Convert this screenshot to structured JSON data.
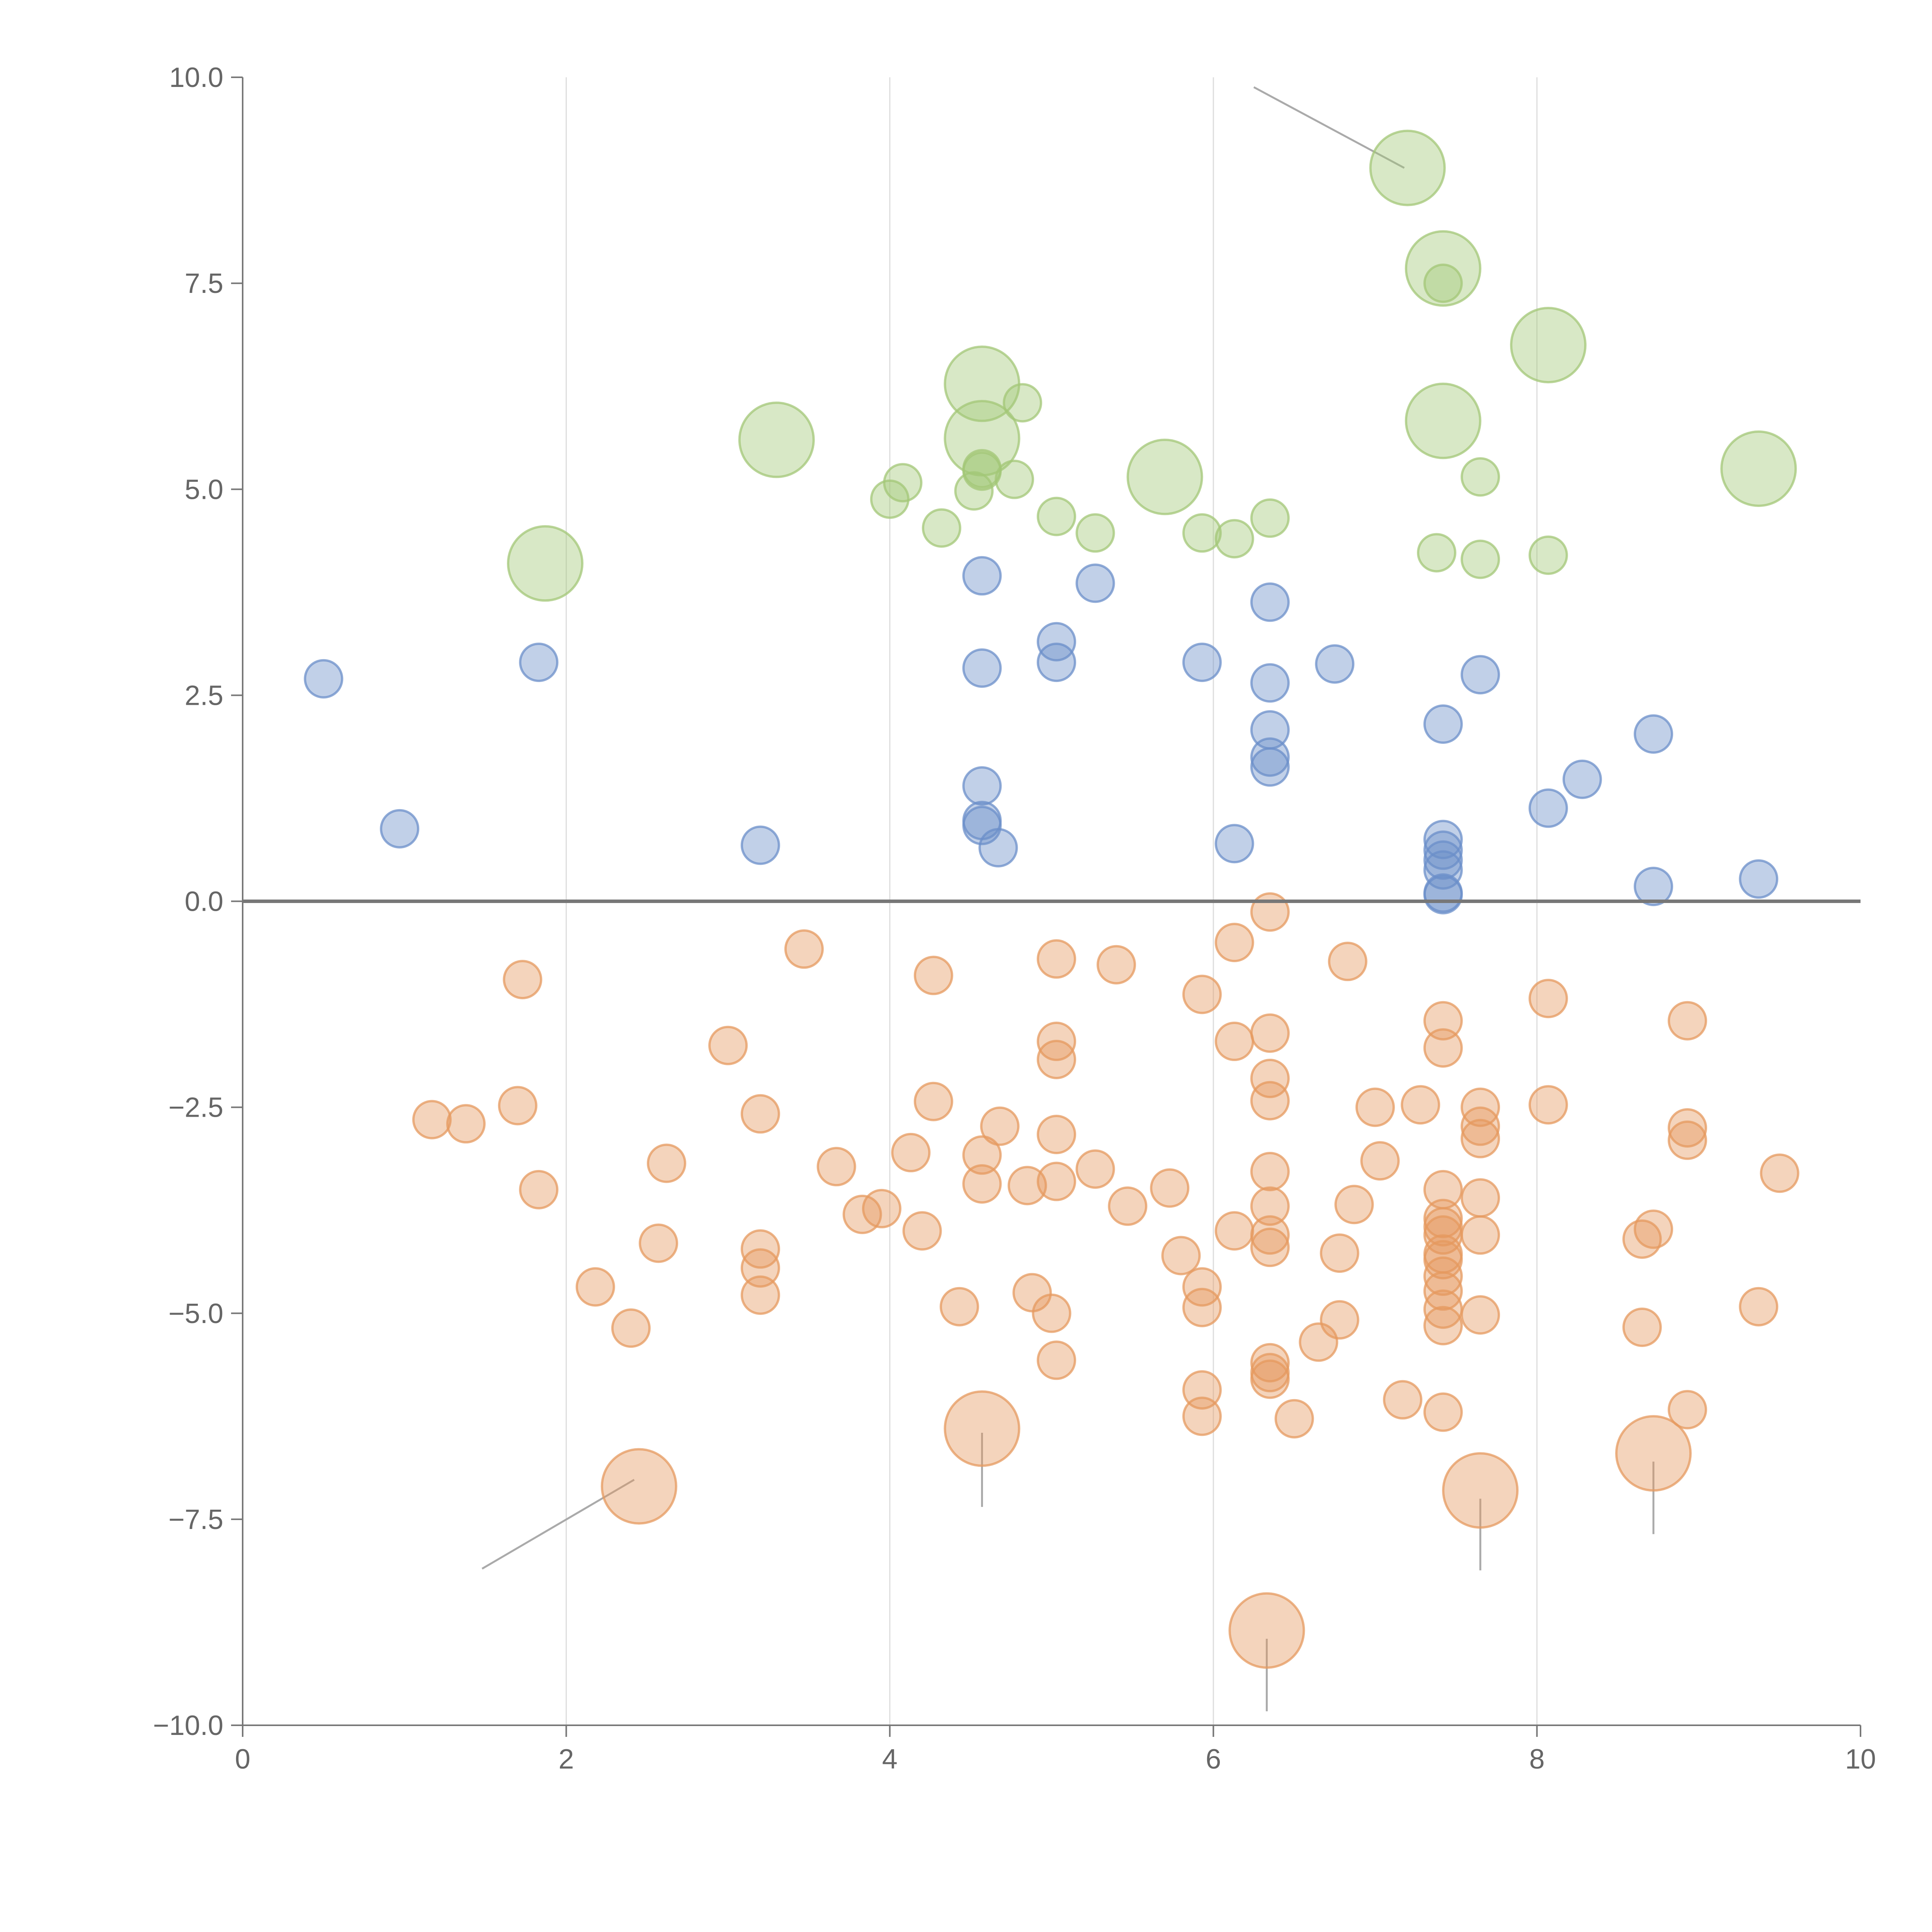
{
  "chart_data": {
    "type": "scatter",
    "title": "",
    "xlabel": "",
    "ylabel": "",
    "xlim": [
      0,
      10
    ],
    "ylim": [
      -10,
      10
    ],
    "x_ticks": [
      0,
      2,
      4,
      6,
      8,
      10
    ],
    "x_tick_labels": [
      "0",
      "2",
      "4",
      "6",
      "8",
      "10"
    ],
    "y_ticks": [
      -10,
      -7.5,
      -5,
      -2.5,
      0,
      2.5,
      5,
      7.5,
      10
    ],
    "y_tick_labels": [
      "−10.0",
      "−7.5",
      "−5.0",
      "−2.5",
      "0.0",
      "2.5",
      "5.0",
      "7.5",
      "10.0"
    ],
    "grid": "vertical lines only",
    "reference_line_y": 0,
    "size_scale": {
      "small": 1,
      "large": 2
    },
    "colors": {
      "blue": "#6b8fc9",
      "green": "#a3c777",
      "orange": "#e5995f"
    },
    "series": [
      {
        "name": "blue",
        "color": "#6b8fc9",
        "points": [
          {
            "x": 0.5,
            "y": 2.7,
            "size": 1
          },
          {
            "x": 0.97,
            "y": 0.88,
            "size": 1
          },
          {
            "x": 1.83,
            "y": 2.9,
            "size": 1
          },
          {
            "x": 3.2,
            "y": 0.68,
            "size": 1
          },
          {
            "x": 4.57,
            "y": 3.95,
            "size": 1
          },
          {
            "x": 4.57,
            "y": 2.83,
            "size": 1
          },
          {
            "x": 4.57,
            "y": 1.4,
            "size": 1
          },
          {
            "x": 4.57,
            "y": 0.98,
            "size": 1
          },
          {
            "x": 4.57,
            "y": 0.92,
            "size": 1
          },
          {
            "x": 4.67,
            "y": 0.65,
            "size": 1
          },
          {
            "x": 5.03,
            "y": 3.15,
            "size": 1
          },
          {
            "x": 5.03,
            "y": 2.9,
            "size": 1
          },
          {
            "x": 5.27,
            "y": 3.86,
            "size": 1
          },
          {
            "x": 5.93,
            "y": 2.9,
            "size": 1
          },
          {
            "x": 6.13,
            "y": 0.7,
            "size": 1
          },
          {
            "x": 6.35,
            "y": 3.63,
            "size": 1
          },
          {
            "x": 6.35,
            "y": 2.65,
            "size": 1
          },
          {
            "x": 6.35,
            "y": 2.08,
            "size": 1
          },
          {
            "x": 6.35,
            "y": 1.75,
            "size": 1
          },
          {
            "x": 6.35,
            "y": 1.63,
            "size": 1
          },
          {
            "x": 6.75,
            "y": 2.88,
            "size": 1
          },
          {
            "x": 7.42,
            "y": 2.15,
            "size": 1
          },
          {
            "x": 7.42,
            "y": 0.75,
            "size": 1
          },
          {
            "x": 7.42,
            "y": 0.62,
            "size": 1
          },
          {
            "x": 7.42,
            "y": 0.5,
            "size": 1
          },
          {
            "x": 7.42,
            "y": 0.38,
            "size": 1
          },
          {
            "x": 7.42,
            "y": 0.1,
            "size": 1
          },
          {
            "x": 7.42,
            "y": 0.08,
            "size": 1
          },
          {
            "x": 7.65,
            "y": 2.75,
            "size": 1
          },
          {
            "x": 8.07,
            "y": 1.13,
            "size": 1
          },
          {
            "x": 8.28,
            "y": 1.48,
            "size": 1
          },
          {
            "x": 8.72,
            "y": 2.03,
            "size": 1
          },
          {
            "x": 8.72,
            "y": 0.18,
            "size": 1
          },
          {
            "x": 9.37,
            "y": 0.27,
            "size": 1
          }
        ]
      },
      {
        "name": "green",
        "color": "#a3c777",
        "points": [
          {
            "x": 1.87,
            "y": 4.1,
            "size": 2
          },
          {
            "x": 3.3,
            "y": 5.6,
            "size": 2
          },
          {
            "x": 4.0,
            "y": 4.88,
            "size": 1
          },
          {
            "x": 4.08,
            "y": 5.08,
            "size": 1
          },
          {
            "x": 4.32,
            "y": 4.53,
            "size": 1
          },
          {
            "x": 4.52,
            "y": 4.98,
            "size": 1
          },
          {
            "x": 4.57,
            "y": 6.28,
            "size": 2
          },
          {
            "x": 4.57,
            "y": 5.62,
            "size": 2
          },
          {
            "x": 4.57,
            "y": 5.25,
            "size": 1
          },
          {
            "x": 4.57,
            "y": 5.22,
            "size": 1
          },
          {
            "x": 4.77,
            "y": 5.12,
            "size": 1
          },
          {
            "x": 4.82,
            "y": 6.05,
            "size": 1
          },
          {
            "x": 5.03,
            "y": 4.67,
            "size": 1
          },
          {
            "x": 5.27,
            "y": 4.47,
            "size": 1
          },
          {
            "x": 5.7,
            "y": 5.15,
            "size": 2
          },
          {
            "x": 5.93,
            "y": 4.47,
            "size": 1
          },
          {
            "x": 6.13,
            "y": 4.4,
            "size": 1
          },
          {
            "x": 6.35,
            "y": 4.65,
            "size": 1
          },
          {
            "x": 7.2,
            "y": 8.9,
            "size": 2
          },
          {
            "x": 7.42,
            "y": 7.68,
            "size": 2
          },
          {
            "x": 7.42,
            "y": 7.5,
            "size": 1
          },
          {
            "x": 7.42,
            "y": 5.83,
            "size": 2
          },
          {
            "x": 7.38,
            "y": 4.23,
            "size": 1
          },
          {
            "x": 7.65,
            "y": 5.15,
            "size": 1
          },
          {
            "x": 7.65,
            "y": 4.15,
            "size": 1
          },
          {
            "x": 8.07,
            "y": 6.75,
            "size": 2
          },
          {
            "x": 8.07,
            "y": 4.2,
            "size": 1
          },
          {
            "x": 9.37,
            "y": 5.25,
            "size": 2
          }
        ]
      },
      {
        "name": "orange",
        "color": "#e5995f",
        "points": [
          {
            "x": 1.17,
            "y": -2.65,
            "size": 1
          },
          {
            "x": 1.38,
            "y": -2.7,
            "size": 1
          },
          {
            "x": 1.7,
            "y": -2.48,
            "size": 1
          },
          {
            "x": 1.73,
            "y": -0.95,
            "size": 1
          },
          {
            "x": 1.83,
            "y": -3.5,
            "size": 1
          },
          {
            "x": 2.18,
            "y": -4.68,
            "size": 1
          },
          {
            "x": 2.4,
            "y": -5.18,
            "size": 1
          },
          {
            "x": 2.45,
            "y": -7.1,
            "size": 2
          },
          {
            "x": 2.57,
            "y": -4.15,
            "size": 1
          },
          {
            "x": 2.62,
            "y": -3.18,
            "size": 1
          },
          {
            "x": 3.0,
            "y": -1.75,
            "size": 1
          },
          {
            "x": 3.2,
            "y": -2.58,
            "size": 1
          },
          {
            "x": 3.2,
            "y": -4.22,
            "size": 1
          },
          {
            "x": 3.2,
            "y": -4.45,
            "size": 1
          },
          {
            "x": 3.2,
            "y": -4.78,
            "size": 1
          },
          {
            "x": 3.47,
            "y": -0.58,
            "size": 1
          },
          {
            "x": 3.67,
            "y": -3.22,
            "size": 1
          },
          {
            "x": 3.83,
            "y": -3.8,
            "size": 1
          },
          {
            "x": 3.95,
            "y": -3.73,
            "size": 1
          },
          {
            "x": 4.13,
            "y": -3.05,
            "size": 1
          },
          {
            "x": 4.2,
            "y": -4.0,
            "size": 1
          },
          {
            "x": 4.27,
            "y": -0.9,
            "size": 1
          },
          {
            "x": 4.27,
            "y": -2.43,
            "size": 1
          },
          {
            "x": 4.43,
            "y": -4.92,
            "size": 1
          },
          {
            "x": 4.57,
            "y": -3.08,
            "size": 1
          },
          {
            "x": 4.57,
            "y": -3.43,
            "size": 1
          },
          {
            "x": 4.57,
            "y": -6.4,
            "size": 2
          },
          {
            "x": 4.68,
            "y": -2.73,
            "size": 1
          },
          {
            "x": 4.85,
            "y": -3.45,
            "size": 1
          },
          {
            "x": 4.88,
            "y": -4.75,
            "size": 1
          },
          {
            "x": 5.0,
            "y": -5.0,
            "size": 1
          },
          {
            "x": 5.03,
            "y": -0.7,
            "size": 1
          },
          {
            "x": 5.03,
            "y": -1.7,
            "size": 1
          },
          {
            "x": 5.03,
            "y": -1.92,
            "size": 1
          },
          {
            "x": 5.03,
            "y": -2.83,
            "size": 1
          },
          {
            "x": 5.03,
            "y": -3.4,
            "size": 1
          },
          {
            "x": 5.03,
            "y": -5.57,
            "size": 1
          },
          {
            "x": 5.27,
            "y": -3.25,
            "size": 1
          },
          {
            "x": 5.4,
            "y": -0.77,
            "size": 1
          },
          {
            "x": 5.47,
            "y": -3.7,
            "size": 1
          },
          {
            "x": 5.73,
            "y": -3.48,
            "size": 1
          },
          {
            "x": 5.8,
            "y": -4.3,
            "size": 1
          },
          {
            "x": 5.93,
            "y": -1.13,
            "size": 1
          },
          {
            "x": 5.93,
            "y": -4.68,
            "size": 1
          },
          {
            "x": 5.93,
            "y": -4.93,
            "size": 1
          },
          {
            "x": 5.93,
            "y": -5.93,
            "size": 1
          },
          {
            "x": 5.93,
            "y": -6.25,
            "size": 1
          },
          {
            "x": 6.13,
            "y": -0.5,
            "size": 1
          },
          {
            "x": 6.13,
            "y": -1.7,
            "size": 1
          },
          {
            "x": 6.13,
            "y": -4.0,
            "size": 1
          },
          {
            "x": 6.35,
            "y": -0.13,
            "size": 1
          },
          {
            "x": 6.35,
            "y": -1.6,
            "size": 1
          },
          {
            "x": 6.35,
            "y": -2.15,
            "size": 1
          },
          {
            "x": 6.35,
            "y": -2.42,
            "size": 1
          },
          {
            "x": 6.35,
            "y": -3.28,
            "size": 1
          },
          {
            "x": 6.35,
            "y": -3.7,
            "size": 1
          },
          {
            "x": 6.35,
            "y": -4.05,
            "size": 1
          },
          {
            "x": 6.35,
            "y": -4.2,
            "size": 1
          },
          {
            "x": 6.35,
            "y": -5.6,
            "size": 1
          },
          {
            "x": 6.35,
            "y": -5.72,
            "size": 1
          },
          {
            "x": 6.35,
            "y": -5.8,
            "size": 1
          },
          {
            "x": 6.33,
            "y": -8.85,
            "size": 2
          },
          {
            "x": 6.5,
            "y": -6.28,
            "size": 1
          },
          {
            "x": 6.65,
            "y": -5.35,
            "size": 1
          },
          {
            "x": 6.78,
            "y": -4.27,
            "size": 1
          },
          {
            "x": 6.78,
            "y": -5.08,
            "size": 1
          },
          {
            "x": 6.83,
            "y": -0.73,
            "size": 1
          },
          {
            "x": 6.87,
            "y": -3.68,
            "size": 1
          },
          {
            "x": 7.0,
            "y": -2.5,
            "size": 1
          },
          {
            "x": 7.03,
            "y": -3.15,
            "size": 1
          },
          {
            "x": 7.17,
            "y": -6.05,
            "size": 1
          },
          {
            "x": 7.28,
            "y": -2.47,
            "size": 1
          },
          {
            "x": 7.42,
            "y": -1.45,
            "size": 1
          },
          {
            "x": 7.42,
            "y": -1.78,
            "size": 1
          },
          {
            "x": 7.42,
            "y": -3.5,
            "size": 1
          },
          {
            "x": 7.42,
            "y": -3.85,
            "size": 1
          },
          {
            "x": 7.42,
            "y": -3.95,
            "size": 1
          },
          {
            "x": 7.42,
            "y": -4.05,
            "size": 1
          },
          {
            "x": 7.42,
            "y": -4.28,
            "size": 1
          },
          {
            "x": 7.42,
            "y": -4.35,
            "size": 1
          },
          {
            "x": 7.42,
            "y": -4.55,
            "size": 1
          },
          {
            "x": 7.42,
            "y": -4.73,
            "size": 1
          },
          {
            "x": 7.42,
            "y": -4.95,
            "size": 1
          },
          {
            "x": 7.42,
            "y": -5.15,
            "size": 1
          },
          {
            "x": 7.42,
            "y": -6.2,
            "size": 1
          },
          {
            "x": 7.65,
            "y": -2.5,
            "size": 1
          },
          {
            "x": 7.65,
            "y": -2.73,
            "size": 1
          },
          {
            "x": 7.65,
            "y": -2.88,
            "size": 1
          },
          {
            "x": 7.65,
            "y": -3.6,
            "size": 1
          },
          {
            "x": 7.65,
            "y": -4.05,
            "size": 1
          },
          {
            "x": 7.65,
            "y": -5.02,
            "size": 1
          },
          {
            "x": 7.65,
            "y": -7.15,
            "size": 2
          },
          {
            "x": 8.07,
            "y": -1.18,
            "size": 1
          },
          {
            "x": 8.07,
            "y": -2.47,
            "size": 1
          },
          {
            "x": 8.65,
            "y": -4.1,
            "size": 1
          },
          {
            "x": 8.65,
            "y": -5.17,
            "size": 1
          },
          {
            "x": 8.72,
            "y": -3.98,
            "size": 1
          },
          {
            "x": 8.72,
            "y": -6.7,
            "size": 2
          },
          {
            "x": 8.93,
            "y": -1.45,
            "size": 1
          },
          {
            "x": 8.93,
            "y": -2.75,
            "size": 1
          },
          {
            "x": 8.93,
            "y": -2.9,
            "size": 1
          },
          {
            "x": 8.93,
            "y": -6.17,
            "size": 1
          },
          {
            "x": 9.37,
            "y": -4.92,
            "size": 1
          },
          {
            "x": 9.5,
            "y": -3.3,
            "size": 1
          }
        ]
      }
    ],
    "leader_lines": [
      {
        "from": [
          7.18,
          8.9
        ],
        "to": [
          6.25,
          9.88
        ]
      },
      {
        "from": [
          2.42,
          -7.02
        ],
        "to": [
          1.48,
          -8.1
        ]
      },
      {
        "from": [
          4.57,
          -6.45
        ],
        "to": [
          4.57,
          -7.35
        ]
      },
      {
        "from": [
          7.65,
          -7.25
        ],
        "to": [
          7.65,
          -8.12
        ]
      },
      {
        "from": [
          8.72,
          -6.8
        ],
        "to": [
          8.72,
          -7.68
        ]
      },
      {
        "from": [
          6.33,
          -8.95
        ],
        "to": [
          6.33,
          -9.83
        ]
      }
    ]
  }
}
